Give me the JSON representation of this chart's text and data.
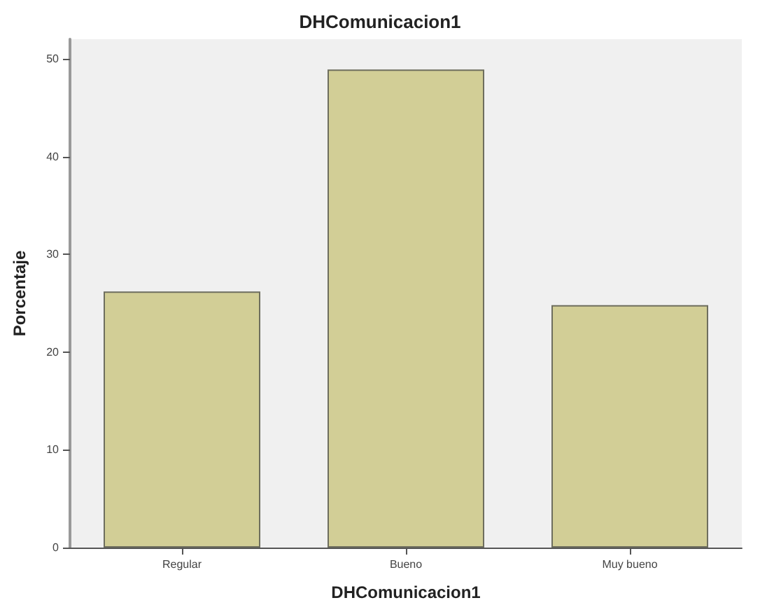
{
  "chart_data": {
    "type": "bar",
    "title": "DHComunicacion1",
    "xlabel": "DHComunicacion1",
    "ylabel": "Porcentaje",
    "categories": [
      "Regular",
      "Bueno",
      "Muy bueno"
    ],
    "values": [
      26.2,
      48.9,
      24.8
    ],
    "color": "#d2ce96",
    "ylim": [
      0,
      52
    ],
    "yticks": [
      0,
      10,
      20,
      30,
      40,
      50
    ],
    "grid": false
  }
}
